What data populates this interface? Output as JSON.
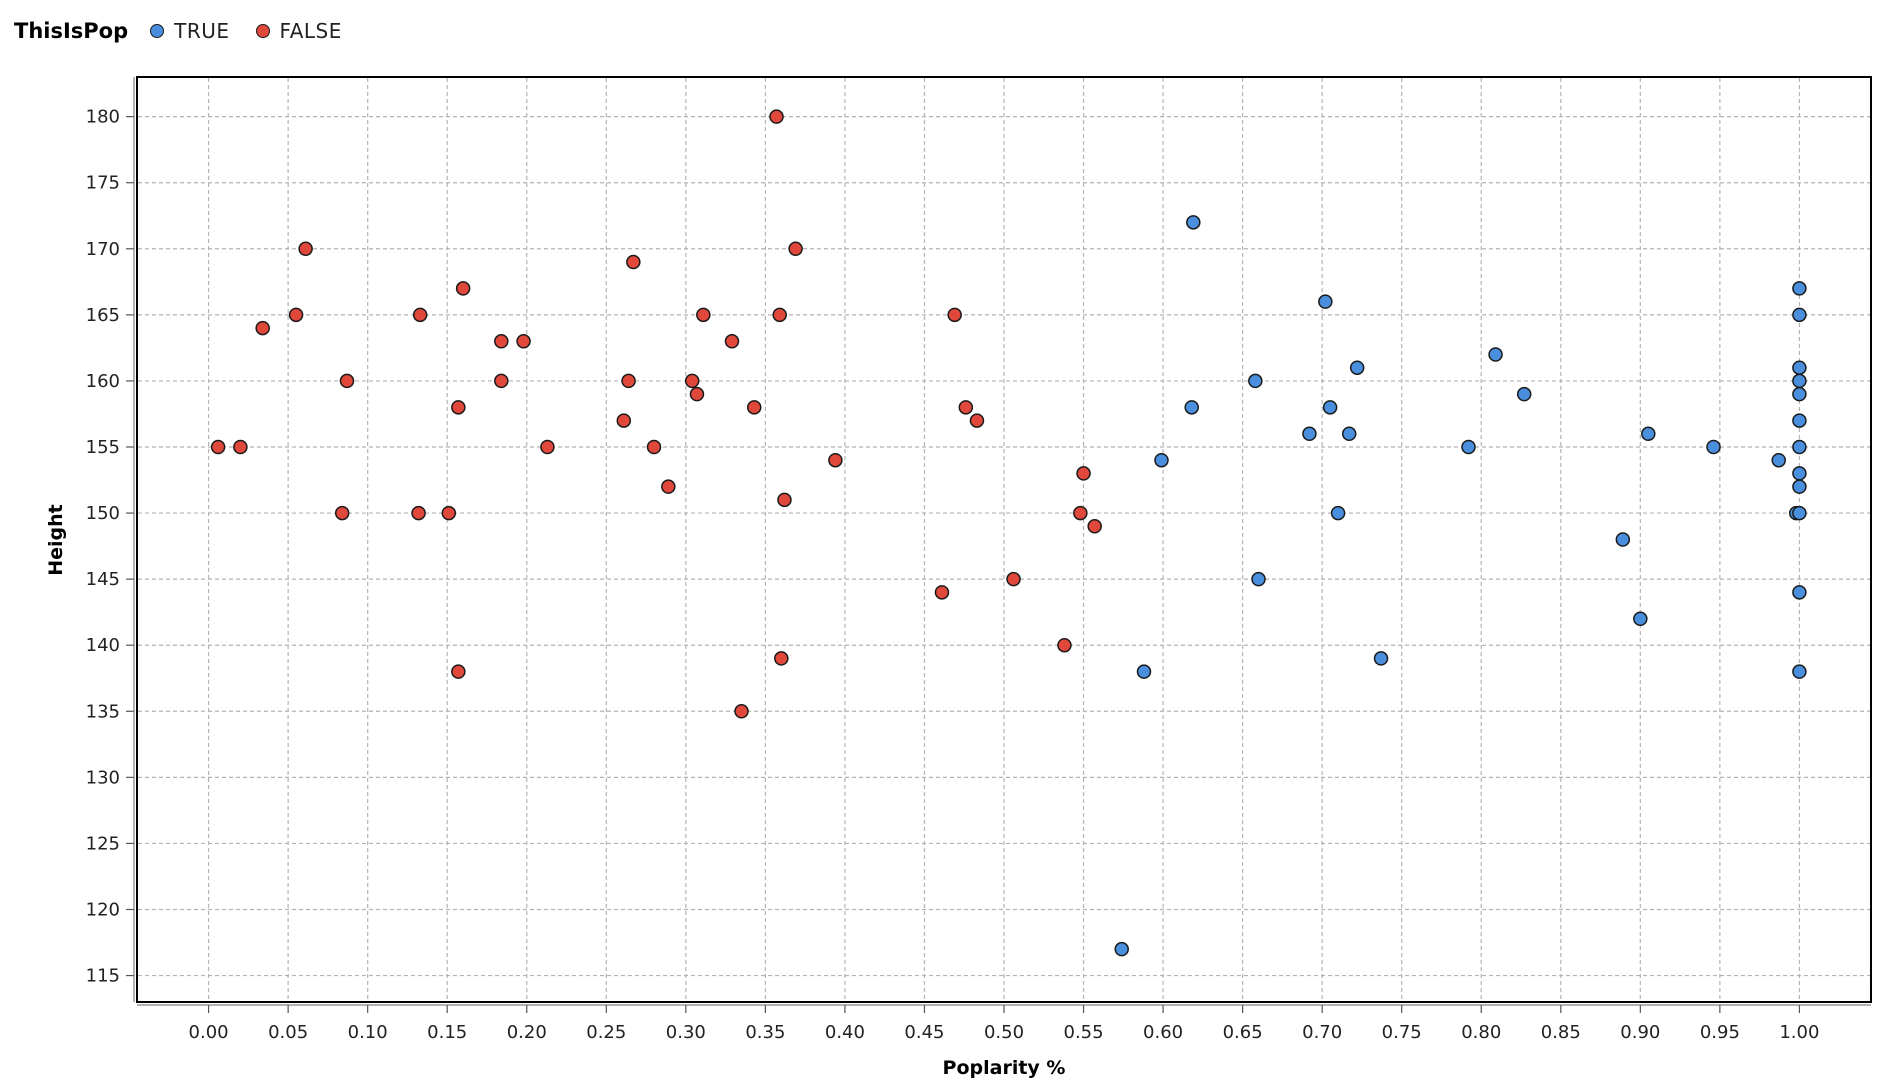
{
  "legend": {
    "title": "ThisIsPop",
    "items": [
      {
        "label": "TRUE",
        "color": "#4a8fdd"
      },
      {
        "label": "FALSE",
        "color": "#e0483c"
      }
    ]
  },
  "chart_data": {
    "type": "scatter",
    "title": "",
    "xlabel": "Poplarity %",
    "ylabel": "Height",
    "xlim": [
      -0.045,
      1.045
    ],
    "ylim": [
      113,
      183
    ],
    "xticks": [
      "0.00",
      "0.05",
      "0.10",
      "0.15",
      "0.20",
      "0.25",
      "0.30",
      "0.35",
      "0.40",
      "0.45",
      "0.50",
      "0.55",
      "0.60",
      "0.65",
      "0.70",
      "0.75",
      "0.80",
      "0.85",
      "0.90",
      "0.95",
      "1.00"
    ],
    "yticks": [
      "115",
      "120",
      "125",
      "130",
      "135",
      "140",
      "145",
      "150",
      "155",
      "160",
      "165",
      "170",
      "175",
      "180"
    ],
    "grid": true,
    "legend_position": "top-left",
    "series": [
      {
        "name": "TRUE",
        "color": "#4a8fdd",
        "points": [
          [
            0.619,
            172
          ],
          [
            0.702,
            166
          ],
          [
            0.722,
            161
          ],
          [
            0.658,
            160
          ],
          [
            0.618,
            158
          ],
          [
            0.705,
            158
          ],
          [
            0.692,
            156
          ],
          [
            0.717,
            156
          ],
          [
            0.599,
            154
          ],
          [
            0.71,
            150
          ],
          [
            0.66,
            145
          ],
          [
            0.588,
            138
          ],
          [
            0.737,
            139
          ],
          [
            0.574,
            117
          ],
          [
            0.792,
            155
          ],
          [
            0.809,
            162
          ],
          [
            0.827,
            159
          ],
          [
            0.905,
            156
          ],
          [
            0.946,
            155
          ],
          [
            0.889,
            148
          ],
          [
            0.9,
            142
          ],
          [
            0.987,
            154
          ],
          [
            0.998,
            150
          ],
          [
            1.0,
            167
          ],
          [
            1.0,
            165
          ],
          [
            1.0,
            161
          ],
          [
            1.0,
            160
          ],
          [
            1.0,
            159
          ],
          [
            1.0,
            157
          ],
          [
            1.0,
            155
          ],
          [
            1.0,
            153
          ],
          [
            1.0,
            152
          ],
          [
            1.0,
            150
          ],
          [
            1.0,
            144
          ],
          [
            1.0,
            138
          ]
        ]
      },
      {
        "name": "FALSE",
        "color": "#e0483c",
        "points": [
          [
            0.006,
            155
          ],
          [
            0.02,
            155
          ],
          [
            0.034,
            164
          ],
          [
            0.055,
            165
          ],
          [
            0.061,
            170
          ],
          [
            0.084,
            150
          ],
          [
            0.087,
            160
          ],
          [
            0.133,
            165
          ],
          [
            0.132,
            150
          ],
          [
            0.151,
            150
          ],
          [
            0.157,
            158
          ],
          [
            0.157,
            138
          ],
          [
            0.16,
            167
          ],
          [
            0.184,
            163
          ],
          [
            0.184,
            160
          ],
          [
            0.198,
            163
          ],
          [
            0.213,
            155
          ],
          [
            0.261,
            157
          ],
          [
            0.264,
            160
          ],
          [
            0.267,
            169
          ],
          [
            0.28,
            155
          ],
          [
            0.289,
            152
          ],
          [
            0.304,
            160
          ],
          [
            0.307,
            159
          ],
          [
            0.311,
            165
          ],
          [
            0.329,
            163
          ],
          [
            0.335,
            135
          ],
          [
            0.343,
            158
          ],
          [
            0.357,
            180
          ],
          [
            0.359,
            165
          ],
          [
            0.36,
            139
          ],
          [
            0.362,
            151
          ],
          [
            0.369,
            170
          ],
          [
            0.394,
            154
          ],
          [
            0.461,
            144
          ],
          [
            0.469,
            165
          ],
          [
            0.476,
            158
          ],
          [
            0.483,
            157
          ],
          [
            0.506,
            145
          ],
          [
            0.538,
            140
          ],
          [
            0.548,
            150
          ],
          [
            0.55,
            153
          ],
          [
            0.557,
            149
          ]
        ]
      }
    ]
  }
}
